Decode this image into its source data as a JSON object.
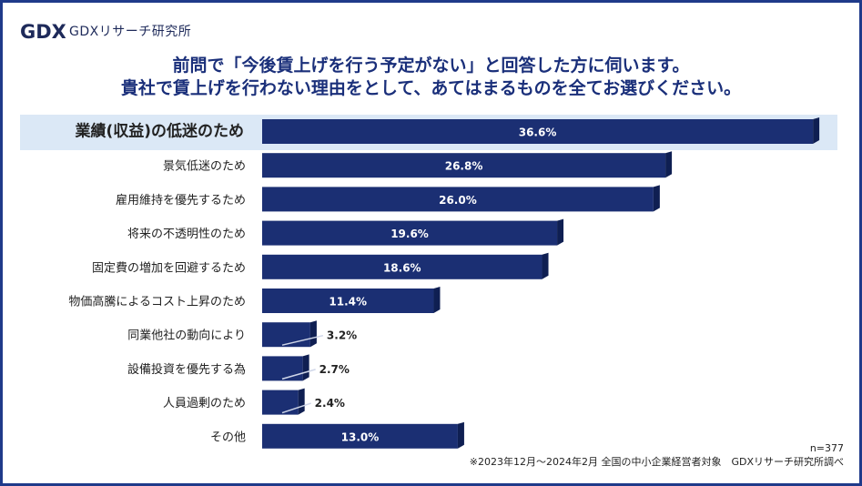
{
  "brand": {
    "name": "GDXリサーチ研究所",
    "logo_letters": "GDX"
  },
  "title_line1": "前問で「今後賃上げを行う予定がない」と回答した方に伺います。",
  "title_line2": "貴社で賃上げを行わない理由をとして、あてはまるものを全てお選びください。",
  "n_label": "n=377",
  "footnote": "※2023年12月～2024年2月 全国の中小企業経営者対象　GDXリサーチ研究所調べ",
  "colors": {
    "bar": "#1b2f73",
    "bar_top": "#2d4a9c",
    "title": "#1a2f7a",
    "highlight": "#dbe8f6",
    "frame": "#1f3a8a"
  },
  "chart_data": {
    "type": "bar",
    "orientation": "horizontal",
    "categories": [
      "業績(収益)の低迷のため",
      "景気低迷のため",
      "雇用維持を優先するため",
      "将来の不透明性のため",
      "固定費の増加を回避するため",
      "物価高騰によるコスト上昇のため",
      "同業他社の動向により",
      "設備投資を優先する為",
      "人員過剰のため",
      "その他"
    ],
    "values": [
      36.6,
      26.8,
      26.0,
      19.6,
      18.6,
      11.4,
      3.2,
      2.7,
      2.4,
      13.0
    ],
    "value_labels": [
      "36.6%",
      "26.8%",
      "26.0%",
      "19.6%",
      "18.6%",
      "11.4%",
      "3.2%",
      "2.7%",
      "2.4%",
      "13.0%"
    ],
    "highlighted_category": "業績(収益)の低迷のため",
    "xlim": [
      0,
      37.5
    ]
  }
}
